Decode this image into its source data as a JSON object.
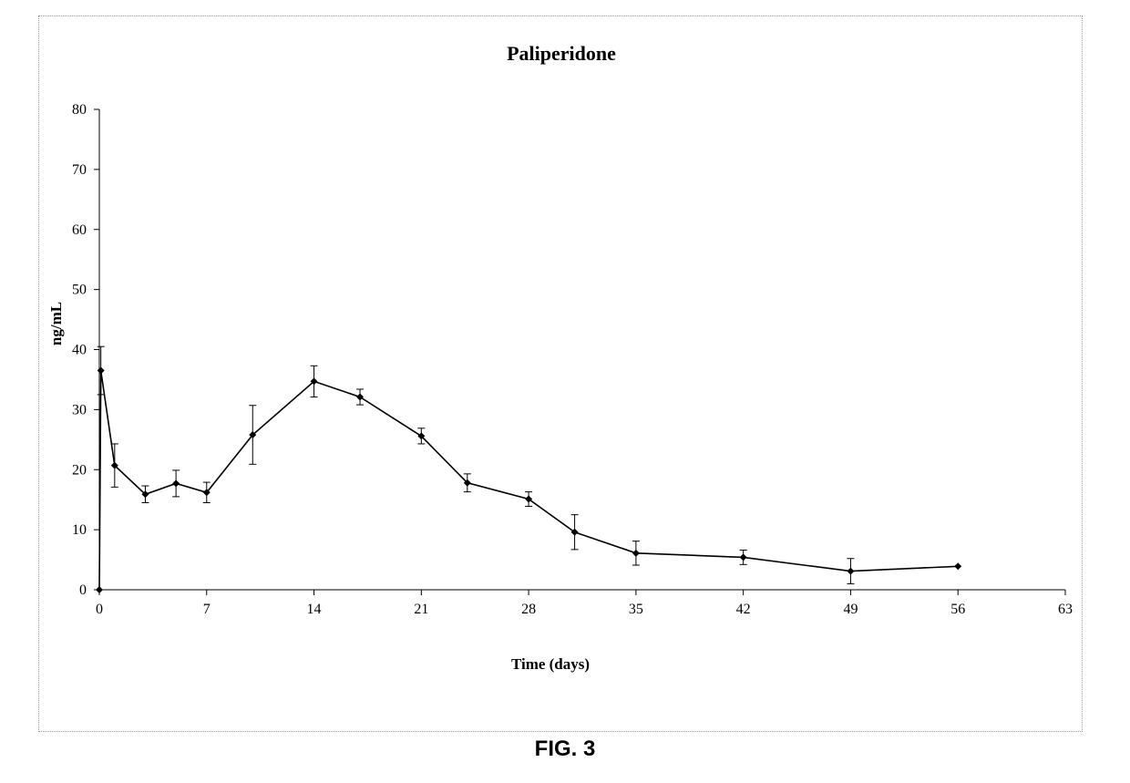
{
  "caption": "FIG. 3",
  "chart_data": {
    "type": "line",
    "title": "Paliperidone",
    "xlabel": "Time (days)",
    "ylabel": "ng/mL",
    "xlim": [
      0,
      63
    ],
    "ylim": [
      0,
      80
    ],
    "x_ticks": [
      0,
      7,
      14,
      21,
      28,
      35,
      42,
      49,
      56,
      63
    ],
    "y_ticks": [
      0,
      10,
      20,
      30,
      40,
      50,
      60,
      70,
      80
    ],
    "grid": false,
    "legend": "none",
    "series": [
      {
        "x": [
          0,
          0.1,
          1,
          3,
          5,
          7,
          10,
          14,
          17,
          21,
          24,
          28,
          31,
          35,
          42,
          49,
          56
        ],
        "y": [
          0,
          36.5,
          20.7,
          15.9,
          17.7,
          16.2,
          25.8,
          34.7,
          32.1,
          25.6,
          17.8,
          15.1,
          9.6,
          6.1,
          5.4,
          3.1,
          3.9
        ],
        "error": [
          0,
          4.0,
          3.6,
          1.4,
          2.2,
          1.7,
          4.9,
          2.6,
          1.3,
          1.3,
          1.5,
          1.2,
          2.9,
          2.0,
          1.2,
          2.1,
          0
        ],
        "color": "#000000"
      }
    ]
  }
}
